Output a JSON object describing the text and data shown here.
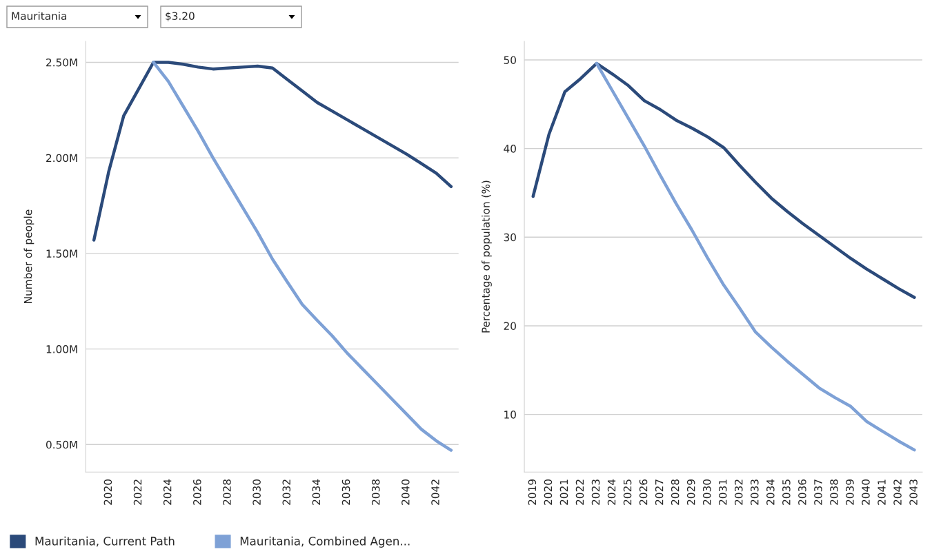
{
  "chart_data": [
    {
      "type": "line",
      "ylabel": "Number of people",
      "annotations": [
        "Mauritania",
        "$3.20"
      ],
      "x": [
        2019,
        2020,
        2021,
        2022,
        2023,
        2024,
        2025,
        2026,
        2027,
        2028,
        2029,
        2030,
        2031,
        2032,
        2033,
        2034,
        2035,
        2036,
        2037,
        2038,
        2039,
        2040,
        2041,
        2042,
        2043
      ],
      "series": [
        {
          "name": "Mauritania, Current Path",
          "color": "#2b4a7a",
          "values": [
            1.57,
            1.93,
            2.22,
            2.36,
            2.5,
            2.5,
            2.49,
            2.475,
            2.465,
            2.47,
            2.475,
            2.48,
            2.47,
            2.41,
            2.35,
            2.29,
            2.245,
            2.2,
            2.155,
            2.11,
            2.065,
            2.02,
            1.97,
            1.92,
            1.85
          ]
        },
        {
          "name": "Mauritania, Combined Agen...",
          "color": "#7ea1d6",
          "values": [
            null,
            null,
            null,
            null,
            2.5,
            2.4,
            2.27,
            2.14,
            2.0,
            1.87,
            1.74,
            1.61,
            1.47,
            1.35,
            1.233,
            1.15,
            1.07,
            0.98,
            0.9,
            0.82,
            0.74,
            0.66,
            0.58,
            0.52,
            0.47
          ]
        }
      ],
      "xlim": [
        2018.45,
        2043.5
      ],
      "xticks": [
        2020,
        2022,
        2024,
        2026,
        2028,
        2030,
        2032,
        2034,
        2036,
        2038,
        2040,
        2042
      ],
      "ylim": [
        0.356,
        2.61
      ],
      "yticks": [
        {
          "value": 0.5,
          "label": "0.50M"
        },
        {
          "value": 1.0,
          "label": "1.00M"
        },
        {
          "value": 1.5,
          "label": "1.50M"
        },
        {
          "value": 2.0,
          "label": "2.00M"
        },
        {
          "value": 2.5,
          "label": "2.50M"
        }
      ],
      "grid": "y",
      "legend": "bottom",
      "line_style": "solid"
    },
    {
      "type": "line",
      "ylabel": "Percentage of population (%)",
      "x": [
        2019,
        2020,
        2021,
        2022,
        2023,
        2024,
        2025,
        2026,
        2027,
        2028,
        2029,
        2030,
        2031,
        2032,
        2033,
        2034,
        2035,
        2036,
        2037,
        2038,
        2039,
        2040,
        2041,
        2042,
        2043
      ],
      "series": [
        {
          "name": "Mauritania, Current Path",
          "color": "#2b4a7a",
          "values": [
            34.6,
            41.6,
            46.4,
            47.9,
            49.6,
            48.4,
            47.1,
            45.4,
            44.4,
            43.2,
            42.3,
            41.3,
            40.1,
            38.1,
            36.2,
            34.4,
            32.9,
            31.5,
            30.2,
            28.9,
            27.6,
            26.4,
            25.3,
            24.2,
            23.2
          ]
        },
        {
          "name": "Mauritania, Combined Agen...",
          "color": "#7ea1d6",
          "values": [
            null,
            null,
            null,
            null,
            49.6,
            46.5,
            43.4,
            40.3,
            37.0,
            33.8,
            30.8,
            27.6,
            24.6,
            22.0,
            19.3,
            17.6,
            16.0,
            14.5,
            13.0,
            11.9,
            10.9,
            9.2,
            8.1,
            7.0,
            6.0
          ]
        }
      ],
      "xlim": [
        2018.45,
        2043.5
      ],
      "xticks": [
        2019,
        2020,
        2021,
        2022,
        2023,
        2024,
        2025,
        2026,
        2027,
        2028,
        2029,
        2030,
        2031,
        2032,
        2033,
        2034,
        2035,
        2036,
        2037,
        2038,
        2039,
        2040,
        2041,
        2042,
        2043
      ],
      "ylim": [
        3.5,
        52.1
      ],
      "yticks": [
        10,
        20,
        30,
        40,
        50
      ],
      "grid": "y",
      "legend": "bottom",
      "line_style": "solid"
    }
  ]
}
